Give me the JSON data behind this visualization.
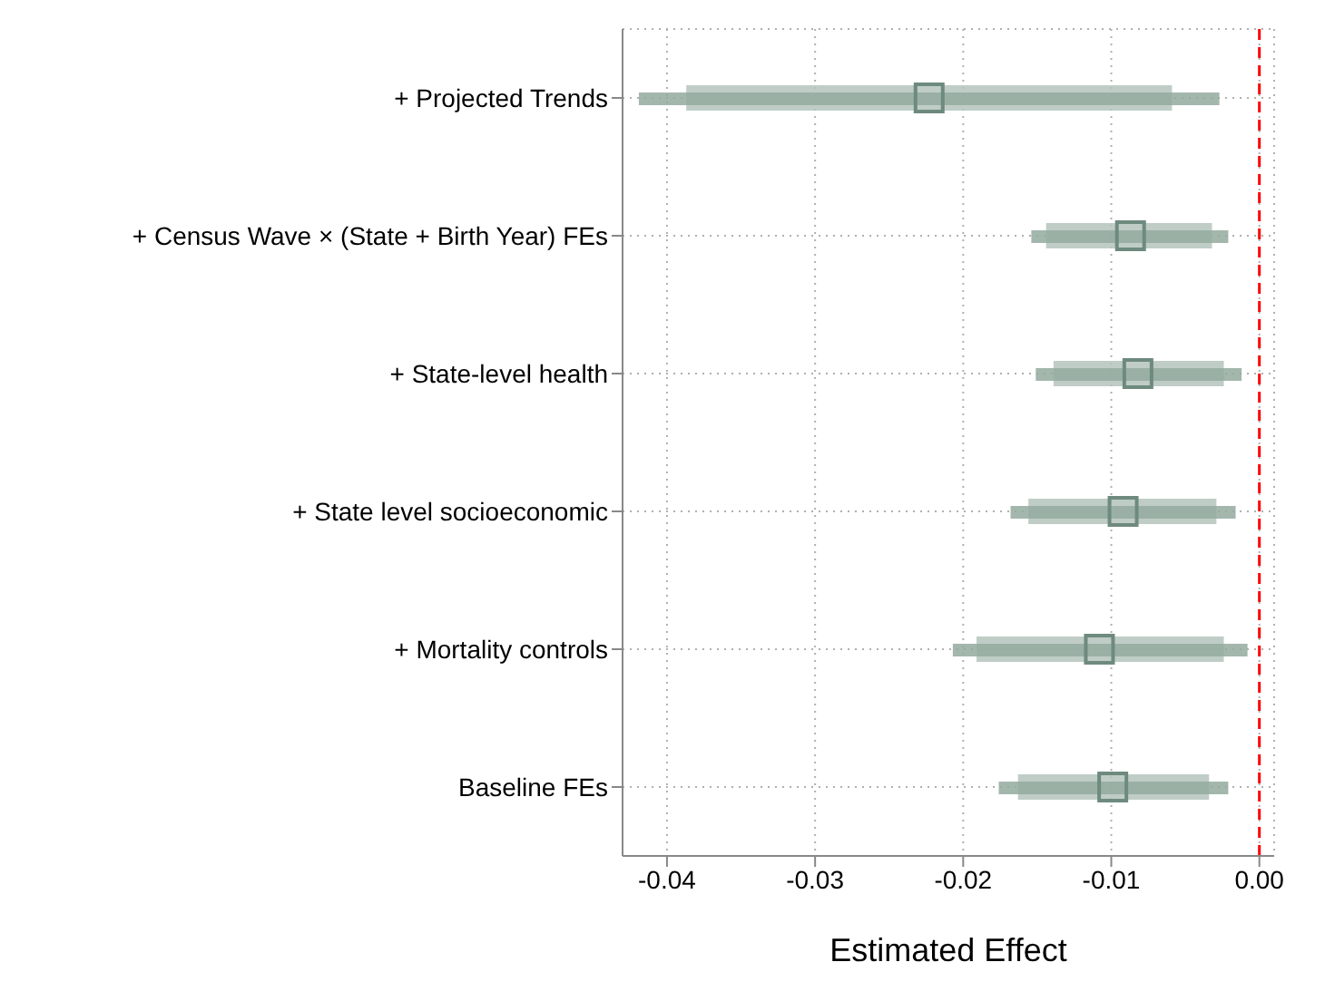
{
  "chart_data": {
    "type": "bar",
    "orientation": "horizontal",
    "xlabel": "Estimated Effect",
    "categories": [
      "+ Projected Trends",
      "+ Census Wave × (State + Birth Year) FEs",
      "+ State-level health",
      "+ State level socioeconomic",
      "+ Mortality controls",
      "Baseline FEs"
    ],
    "series": [
      {
        "color": "#b4c4bc",
        "base": [
          -0.0387,
          -0.0144,
          -0.0139,
          -0.0156,
          -0.0191,
          -0.0163
        ],
        "values": [
          0.0328,
          0.0112,
          0.0115,
          0.0127,
          0.0167,
          0.0129
        ]
      },
      {
        "color": "#94aa9f",
        "base": [
          -0.0419,
          -0.0154,
          -0.0151,
          -0.0168,
          -0.0207,
          -0.0176
        ],
        "values": [
          0.0392,
          0.0133,
          0.0139,
          0.0152,
          0.0199,
          0.0155
        ]
      },
      {
        "type": "scatter",
        "color": "#6e8a7f",
        "marker": "square",
        "values": [
          -0.0223,
          -0.0087,
          -0.0082,
          -0.0092,
          -0.0108,
          -0.0099
        ]
      }
    ],
    "xlim": [
      -0.043,
      0.001
    ],
    "xticks": [
      {
        "value": -0.04,
        "label": "-0.04"
      },
      {
        "value": -0.03,
        "label": "-0.03"
      },
      {
        "value": -0.02,
        "label": "-0.02"
      },
      {
        "value": -0.01,
        "label": "-0.01"
      },
      {
        "value": 0,
        "label": "0.00"
      }
    ],
    "ref_lines": [
      {
        "axis": "x",
        "value": 0,
        "color": "#ff0000",
        "line_style": "dashed"
      }
    ],
    "grid": true,
    "legend": false
  }
}
